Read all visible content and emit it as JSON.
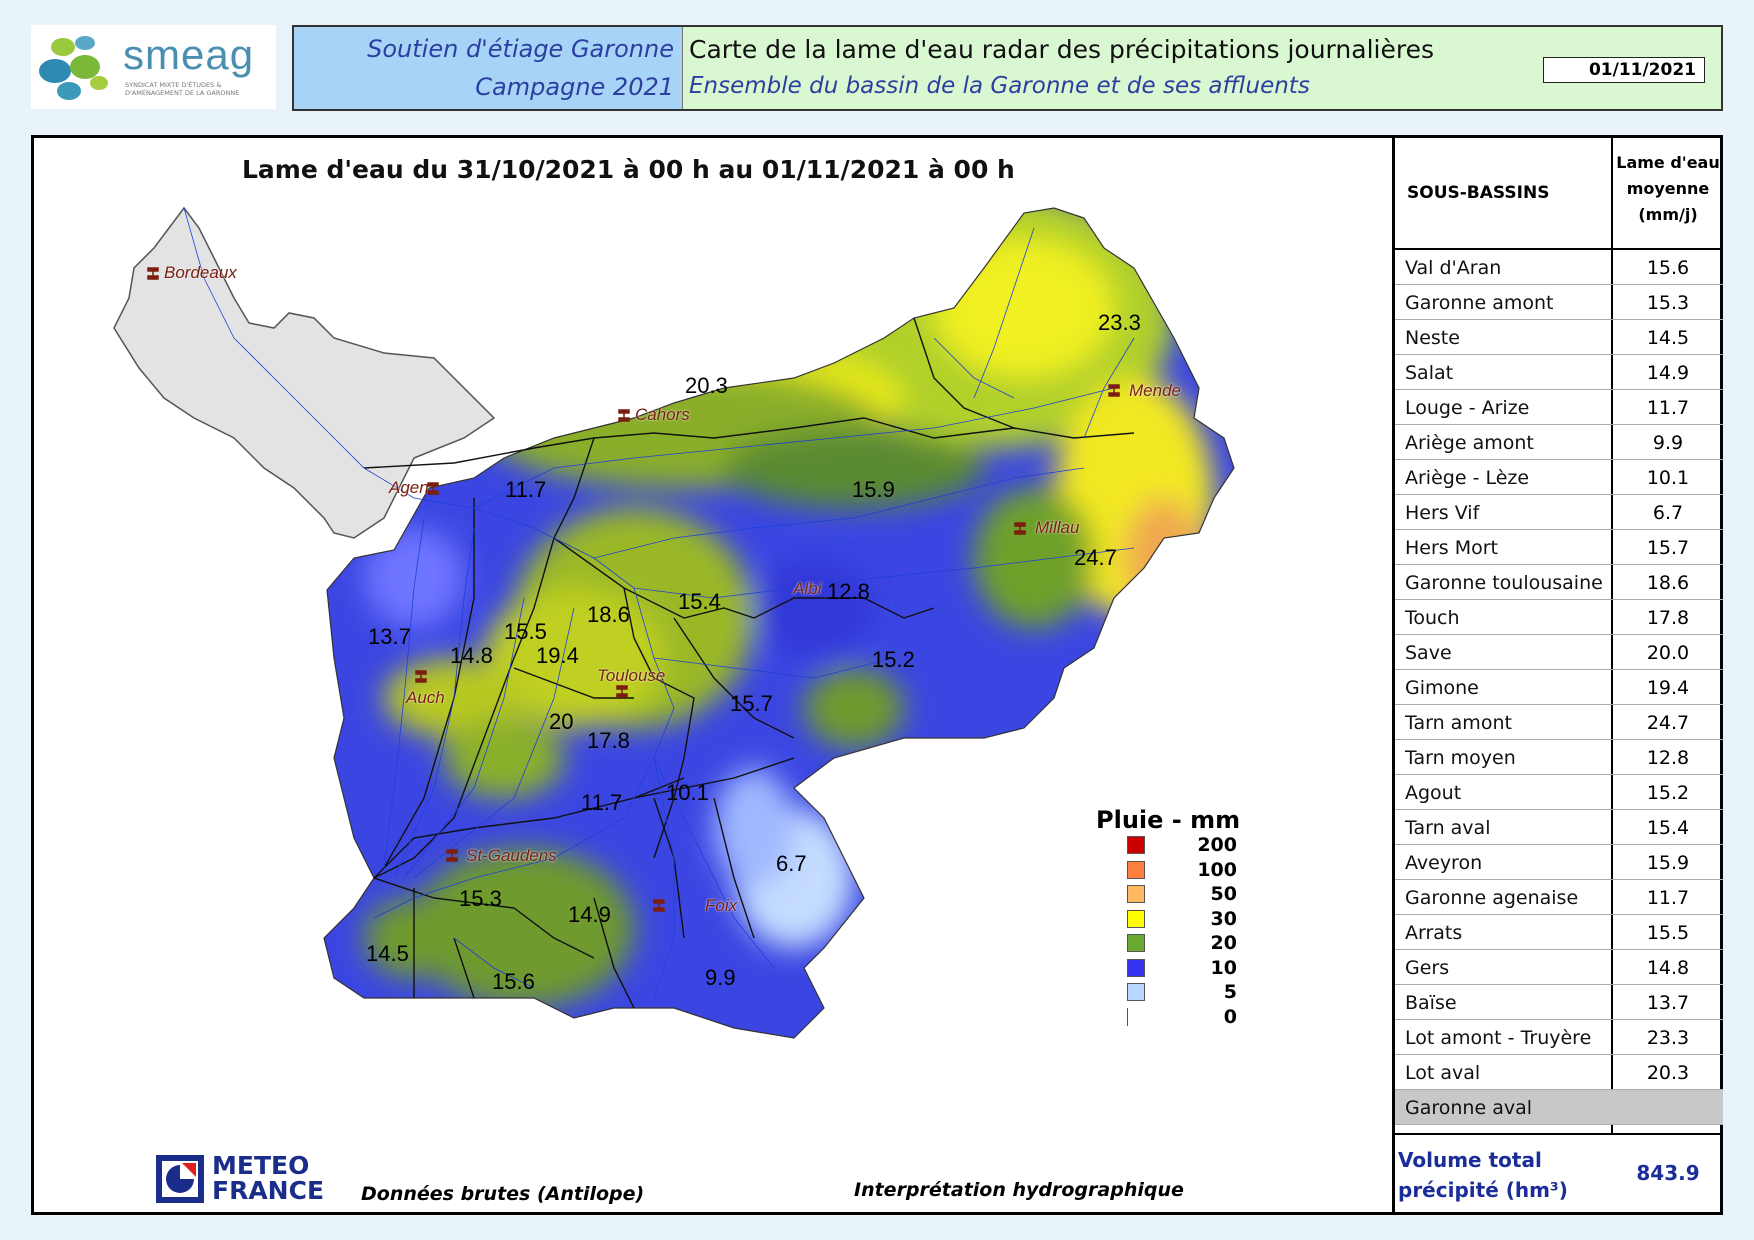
{
  "logo": {
    "name": "smeag",
    "subtitle": "SYNDICAT MIXTE D'ÉTUDES & D'AMÉNAGEMENT DE LA GARONNE"
  },
  "header": {
    "left_line1": "Soutien d'étiage Garonne",
    "left_line2": "Campagne 2021",
    "title": "Carte de la lame d'eau radar des précipitations journalières",
    "subtitle": "Ensemble du bassin de la Garonne et de ses affluents",
    "date": "01/11/2021"
  },
  "map": {
    "title": "Lame d'eau du 31/10/2021 à 00 h au 01/11/2021 à 00 h",
    "cities": [
      "Bordeaux",
      "Cahors",
      "Mende",
      "Agen",
      "Millau",
      "Albi",
      "Auch",
      "Toulouse",
      "St-Gaudens",
      "Foix"
    ],
    "values": [
      "23.3",
      "20.3",
      "11.7",
      "15.9",
      "24.7",
      "12.8",
      "15.4",
      "18.6",
      "13.7",
      "15.5",
      "14.8",
      "19.4",
      "15.2",
      "20",
      "17.8",
      "15.7",
      "11.7",
      "10.1",
      "6.7",
      "15.3",
      "14.9",
      "14.5",
      "15.6",
      "9.9"
    ],
    "colors": {
      "very_low": "#c8dcff",
      "low": "#3b3fe8",
      "mid": "#6e9d2a",
      "high": "#f4f010",
      "higher": "#f5a850",
      "outside": "#e5e5e5"
    }
  },
  "legend": {
    "title": "Pluie - mm",
    "items": [
      {
        "label": "200",
        "color": "#cc0000"
      },
      {
        "label": "100",
        "color": "#ff7f3f"
      },
      {
        "label": "50",
        "color": "#ffb860"
      },
      {
        "label": "30",
        "color": "#ffff00"
      },
      {
        "label": "20",
        "color": "#6aa830"
      },
      {
        "label": "10",
        "color": "#3333ee"
      },
      {
        "label": "5",
        "color": "#b8d8ff"
      },
      {
        "label": "0",
        "color": "#ffffff"
      }
    ]
  },
  "footer": {
    "meteo_line1": "METEO",
    "meteo_line2": "FRANCE",
    "source": "Données brutes (Antilope)",
    "interpretation": "Interprétation hydrographique"
  },
  "table": {
    "col1_header": "SOUS-BASSINS",
    "col2_header_l1": "Lame d'eau",
    "col2_header_l2": "moyenne",
    "col2_header_l3": "(mm/j)",
    "rows": [
      {
        "name": "Val d'Aran",
        "value": "15.6"
      },
      {
        "name": "Garonne amont",
        "value": "15.3"
      },
      {
        "name": "Neste",
        "value": "14.5"
      },
      {
        "name": "Salat",
        "value": "14.9"
      },
      {
        "name": "Louge - Arize",
        "value": "11.7"
      },
      {
        "name": "Ariège amont",
        "value": "9.9"
      },
      {
        "name": "Ariège - Lèze",
        "value": "10.1"
      },
      {
        "name": "Hers Vif",
        "value": "6.7"
      },
      {
        "name": "Hers Mort",
        "value": "15.7"
      },
      {
        "name": "Garonne toulousaine",
        "value": "18.6"
      },
      {
        "name": "Touch",
        "value": "17.8"
      },
      {
        "name": "Save",
        "value": "20.0"
      },
      {
        "name": "Gimone",
        "value": "19.4"
      },
      {
        "name": "Tarn amont",
        "value": "24.7"
      },
      {
        "name": "Tarn moyen",
        "value": "12.8"
      },
      {
        "name": "Agout",
        "value": "15.2"
      },
      {
        "name": "Tarn aval",
        "value": "15.4"
      },
      {
        "name": "Aveyron",
        "value": "15.9"
      },
      {
        "name": "Garonne agenaise",
        "value": "11.7"
      },
      {
        "name": "Arrats",
        "value": "15.5"
      },
      {
        "name": "Gers",
        "value": "14.8"
      },
      {
        "name": "Baïse",
        "value": "13.7"
      },
      {
        "name": "Lot amont - Truyère",
        "value": "23.3"
      },
      {
        "name": "Lot aval",
        "value": "20.3"
      },
      {
        "name": "Garonne aval",
        "value": ""
      }
    ],
    "total_label_l1": "Volume total",
    "total_label_l2": "précipité (hm³)",
    "total_value": "843.9"
  }
}
